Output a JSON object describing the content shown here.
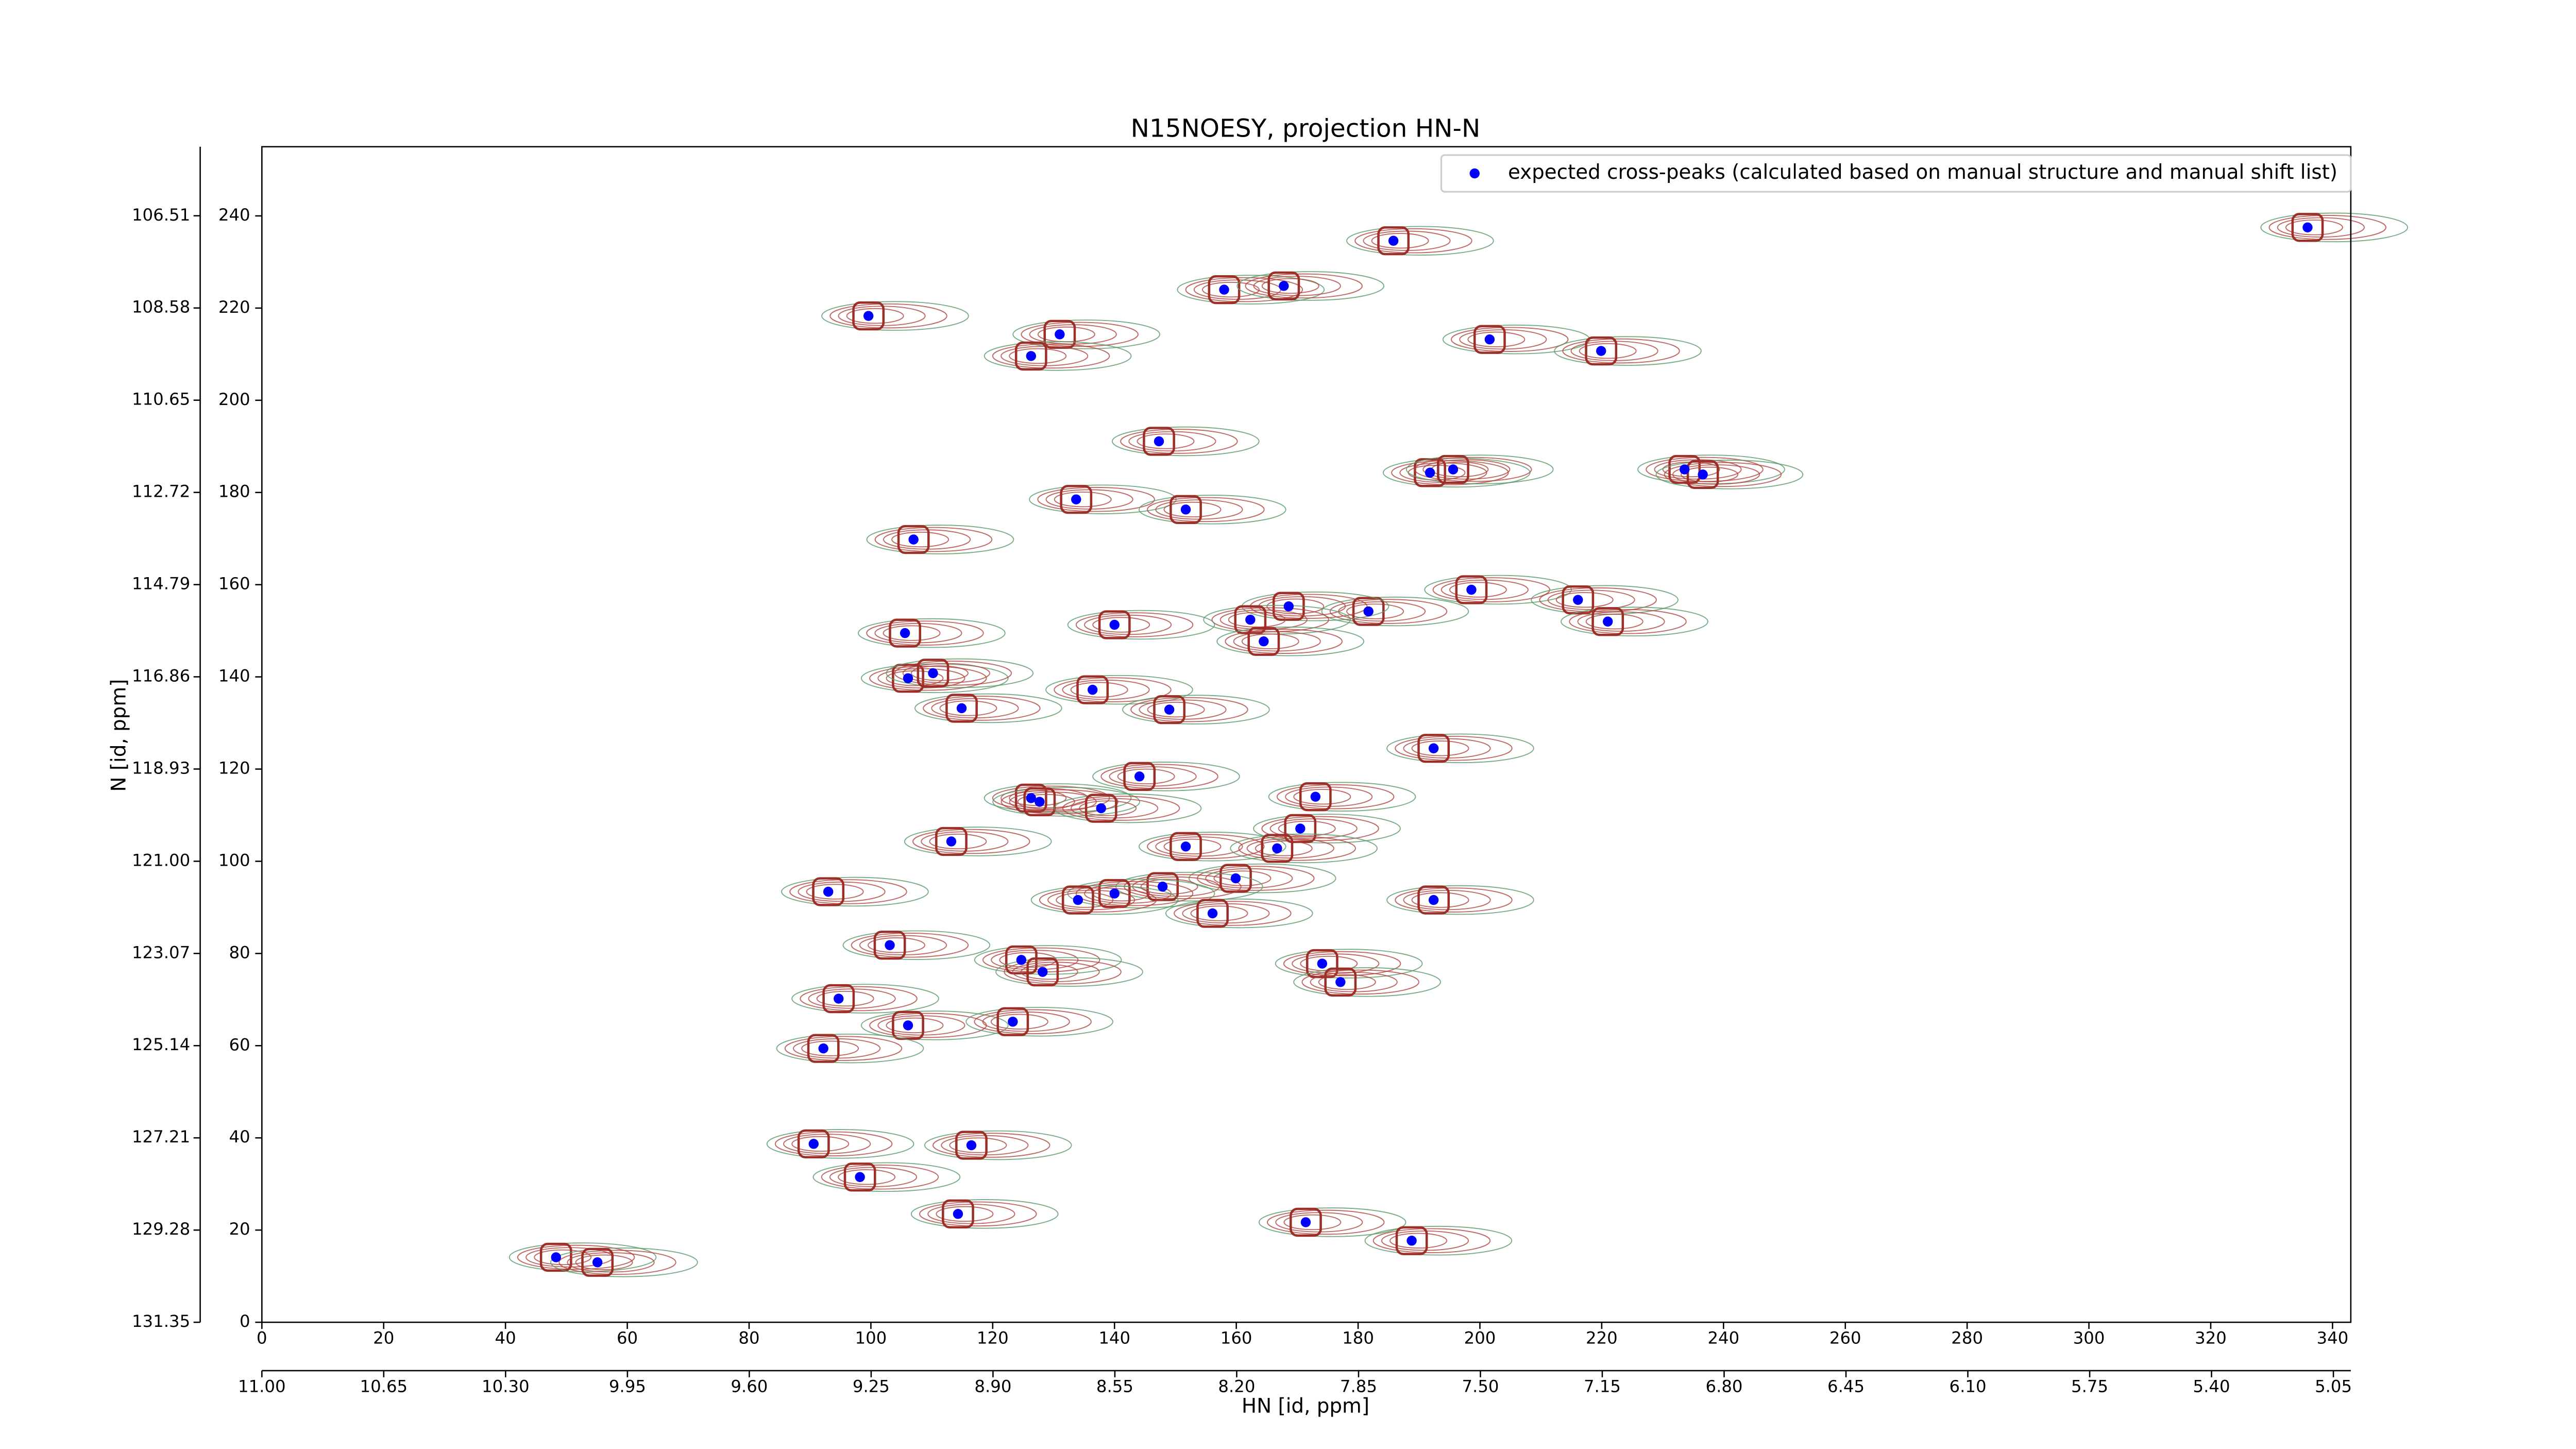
{
  "chart_data": {
    "type": "scatter",
    "title": "N15NOESY, projection HN-N",
    "xlabel": "HN [id, ppm]",
    "ylabel": "N [id, ppm]",
    "xlim": [
      0,
      343
    ],
    "ylim": [
      0,
      255
    ],
    "xticks": [
      0,
      20,
      40,
      60,
      80,
      100,
      120,
      140,
      160,
      180,
      200,
      220,
      240,
      260,
      280,
      300,
      320,
      340
    ],
    "yticks": [
      0,
      20,
      40,
      60,
      80,
      100,
      120,
      140,
      160,
      180,
      200,
      220,
      240
    ],
    "x2lim": [
      11,
      5
    ],
    "x2ticks": [
      {
        "value": 11,
        "label": "11.00"
      },
      10.65,
      {
        "value": 10.3,
        "label": "10.30"
      },
      9.95,
      {
        "value": 9.6,
        "label": "9.60"
      },
      9.25,
      {
        "value": 8.9,
        "label": "8.90"
      },
      8.55,
      {
        "value": 8.2,
        "label": "8.20"
      },
      7.85,
      {
        "value": 7.5,
        "label": "7.50"
      },
      7.15,
      {
        "value": 6.8,
        "label": "6.80"
      },
      6.45,
      {
        "value": 6.1,
        "label": "6.10"
      },
      5.75,
      {
        "value": 5.4,
        "label": "5.40"
      },
      5.05
    ],
    "y2lim": [
      131.35,
      104.96
    ],
    "y2ticks": [
      131.35,
      129.28,
      127.21,
      125.14,
      123.07,
      {
        "value": 121,
        "label": "121.00"
      },
      118.93,
      116.86,
      114.79,
      112.72,
      110.65,
      108.58,
      106.51
    ],
    "legend": "upper right",
    "series": [
      {
        "name": "expected cross-peaks (calculated based on manual structure and manual shift list)",
        "color": "#0000ff",
        "x": [
          99.6,
          131,
          126.3,
          158,
          167.8,
          185.8,
          201.6,
          219.9,
          335.9,
          147.3,
          191.8,
          195.6,
          233.6,
          236.6,
          133.7,
          151.7,
          107,
          198.6,
          216.1,
          221,
          181.7,
          168.6,
          162.3,
          164.5,
          140,
          105.6,
          106.1,
          110.2,
          136.4,
          114.9,
          149,
          192.4,
          144.1,
          126.3,
          127.7,
          137.8,
          173,
          170.5,
          151.7,
          166.7,
          113.2,
          159.9,
          147.9,
          140,
          134,
          156.1,
          93,
          192.4,
          103.1,
          124.7,
          128.2,
          174.1,
          177.1,
          94.7,
          106.1,
          123.3,
          92.2,
          90.6,
          116.5,
          98.2,
          114.3,
          171.4,
          188.8,
          48.3,
          55.1
        ],
        "values": [
          218.3,
          214.3,
          209.6,
          224,
          224.8,
          234.6,
          213.2,
          210.7,
          237.5,
          191.1,
          184.3,
          185,
          185,
          183.9,
          178.5,
          176.3,
          169.8,
          158.9,
          156.7,
          152,
          154.2,
          155.3,
          152.4,
          147.7,
          151.3,
          149.5,
          139.7,
          140.8,
          137.2,
          133.2,
          132.9,
          124.5,
          118.4,
          113.7,
          112.9,
          111.5,
          114,
          107.1,
          103.2,
          102.8,
          104.3,
          96.3,
          94.5,
          93,
          91.6,
          88.7,
          93.4,
          91.6,
          81.8,
          78.6,
          76,
          77.8,
          73.8,
          70.2,
          64.4,
          65.2,
          59.4,
          38.7,
          38.4,
          31.5,
          23.5,
          21.7,
          17.7,
          14.1,
          13
        ]
      }
    ]
  }
}
